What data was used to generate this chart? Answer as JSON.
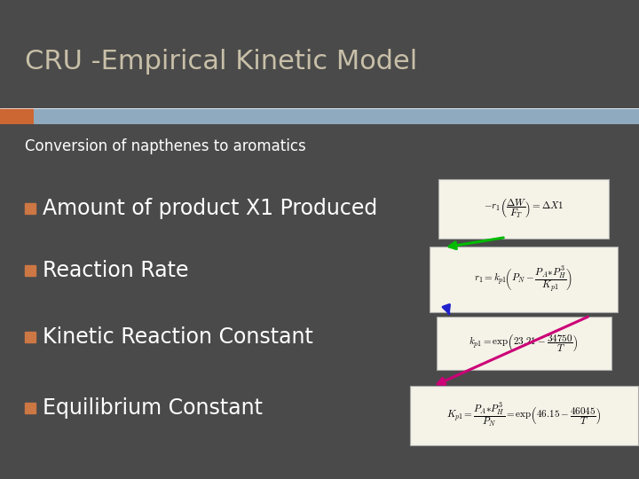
{
  "title": "CRU -Empirical Kinetic Model",
  "title_color": "#c8bfa8",
  "bg_color": "#4a4a4a",
  "header_bar_color": "#8faabf",
  "header_accent_color": "#cc6633",
  "subtitle": "Conversion of napthenes to aromatics",
  "subtitle_color": "#ffffff",
  "bullet_items": [
    "Amount of product X1 Produced",
    "Reaction Rate",
    "Kinetic Reaction Constant",
    "Equilibrium Constant"
  ],
  "bullet_color": "#ffffff",
  "bullet_box_color": "#cc7744",
  "formula_bg": "#f5f2e8",
  "formula_texts": [
    "$-r_1\\left(\\dfrac{\\Delta W}{F_T}\\right) = \\Delta X1$",
    "$r_1 = k_{p1}\\!\\left(P_N - \\dfrac{P_A {*} P_H^{\\,3}}{K_{p1}}\\right)$",
    "$k_{p1} = \\exp\\!\\left(23.21 - \\dfrac{34750}{T}\\right)$",
    "$K_{p1} = \\dfrac{P_A {*} P_H^3}{P_N} = \\exp\\!\\left(46.15 - \\dfrac{46045}{T}\\right)$"
  ],
  "arrow_colors": [
    "#00bb00",
    "#2222cc",
    "#cc0077"
  ],
  "title_fontsize": 22,
  "subtitle_fontsize": 12,
  "bullet_fontsize": 17
}
